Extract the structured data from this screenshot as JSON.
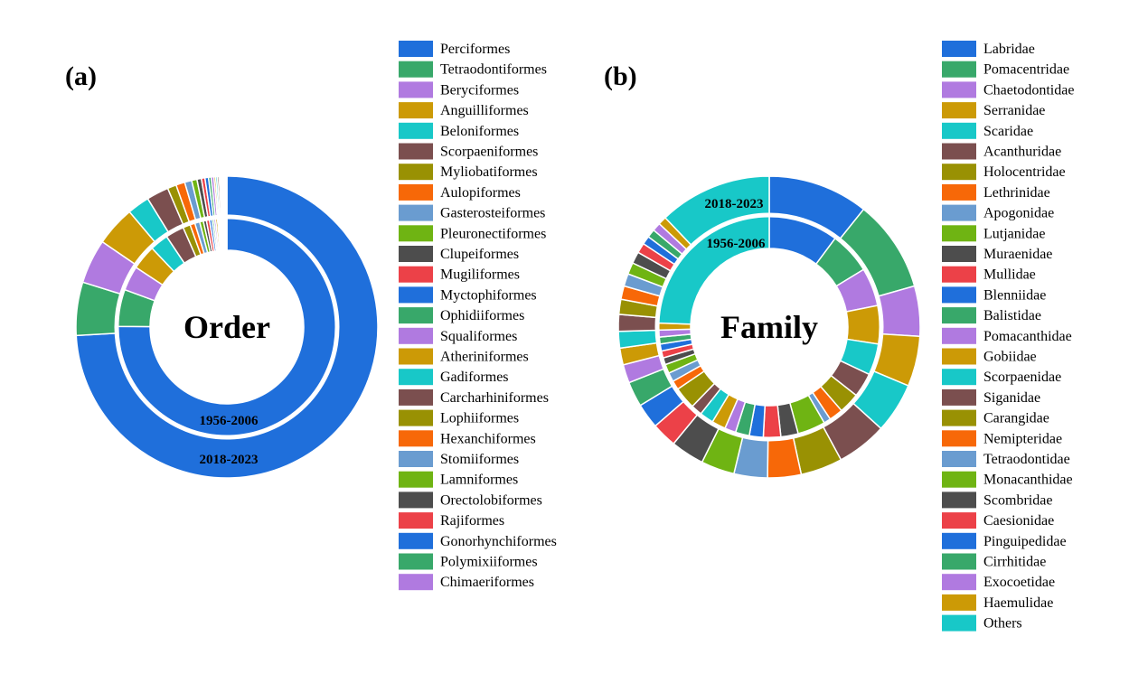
{
  "colors": [
    "#1f6fdb",
    "#38a86a",
    "#b07ae0",
    "#cc9a06",
    "#18c8c8",
    "#7b4f4f",
    "#999103",
    "#f76808",
    "#6a9cd0",
    "#6fb413",
    "#4d4d4d",
    "#ec4148"
  ],
  "chart_data": [
    {
      "type": "pie",
      "variant": "nested-donut",
      "panel_label": "(a)",
      "center_label": "Order",
      "legend_placement": "right",
      "categories": [
        "Perciformes",
        "Tetraodontiformes",
        "Beryciformes",
        "Anguilliformes",
        "Beloniformes",
        "Scorpaeniformes",
        "Myliobatiformes",
        "Aulopiformes",
        "Gasterosteiformes",
        "Pleuronectiformes",
        "Clupeiformes",
        "Mugiliformes",
        "Myctophiformes",
        "Ophidiiformes",
        "Squaliformes",
        "Atheriniformes",
        "Gadiformes",
        "Carcharhiniformes",
        "Lophiiformes",
        "Hexanchiformes",
        "Stomiiformes",
        "Lamniformes",
        "Orectolobiformes",
        "Rajiformes",
        "Gonorhynchiformes",
        "Polymixiiformes",
        "Chimaeriformes"
      ],
      "series": [
        {
          "name": "1956-2006",
          "ring": "inner",
          "values": [
            82,
            6,
            4,
            4,
            3,
            3,
            1.2,
            0.8,
            0.8,
            0.6,
            0.5,
            0.5,
            0.4,
            0.3,
            0.3,
            0.3,
            0.2,
            0.2,
            0.2,
            0.15,
            0.15,
            0.1,
            0.1,
            0.1,
            0.1,
            0.1,
            0.1
          ]
        },
        {
          "name": "2018-2023",
          "ring": "outer",
          "values": [
            78,
            6,
            5,
            4.5,
            2.5,
            2.5,
            1,
            1,
            0.8,
            0.6,
            0.5,
            0.4,
            0.4,
            0.3,
            0.3,
            0.2,
            0.2,
            0.2,
            0.15,
            0.15,
            0.1,
            0.1,
            0.1,
            0.1,
            0.05,
            0.05,
            0.05
          ]
        }
      ]
    },
    {
      "type": "pie",
      "variant": "nested-donut",
      "panel_label": "(b)",
      "center_label": "Family",
      "legend_placement": "right",
      "categories": [
        "Labridae",
        "Pomacentridae",
        "Chaetodontidae",
        "Serranidae",
        "Scaridae",
        "Acanthuridae",
        "Holocentridae",
        "Lethrinidae",
        "Apogonidae",
        "Lutjanidae",
        "Muraenidae",
        "Mullidae",
        "Blenniidae",
        "Balistidae",
        "Pomacanthidae",
        "Gobiidae",
        "Scorpaenidae",
        "Siganidae",
        "Carangidae",
        "Nemipteridae",
        "Tetraodontidae",
        "Monacanthidae",
        "Scombridae",
        "Caesionidae",
        "Pinguipedidae",
        "Cirrhitidae",
        "Exocoetidae",
        "Haemulidae",
        "Others"
      ],
      "series": [
        {
          "name": "1956-2006",
          "ring": "inner",
          "values": [
            10,
            6,
            5.5,
            5.5,
            4.5,
            3.5,
            3,
            2,
            1,
            4,
            2.5,
            2.5,
            2,
            2,
            1.6,
            2,
            2,
            1.6,
            3.2,
            1.3,
            1.3,
            1.3,
            1,
            1,
            1,
            1,
            1,
            1,
            24
          ]
        },
        {
          "name": "2018-2023",
          "ring": "outer",
          "values": [
            12,
            11,
            6,
            6,
            6,
            6,
            5,
            4,
            4,
            4,
            4,
            3,
            3,
            3,
            2.2,
            2,
            2,
            2,
            1.8,
            1.6,
            1.5,
            1.4,
            1.4,
            1.2,
            1,
            1,
            1,
            1,
            13.5
          ]
        }
      ]
    }
  ]
}
